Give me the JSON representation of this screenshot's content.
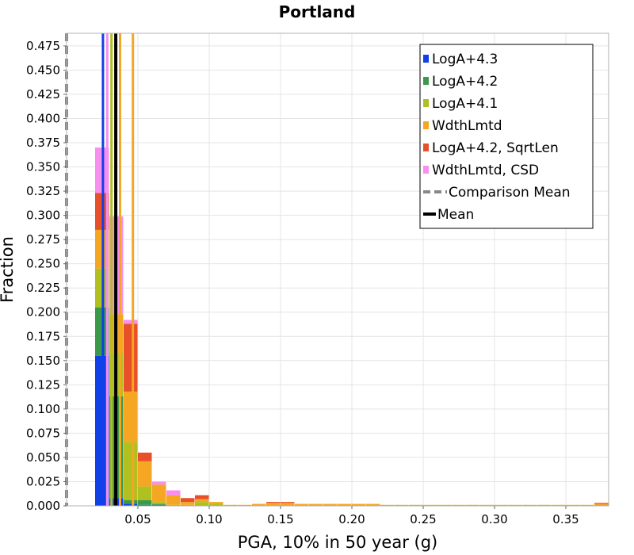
{
  "chart_data": {
    "type": "bar",
    "stacked": true,
    "title": "Portland",
    "xlabel": "PGA, 10% in 50 year (g)",
    "ylabel": "Fraction",
    "xlim": [
      0.0,
      0.38
    ],
    "ylim": [
      0.0,
      0.488
    ],
    "x_ticks": [
      0.05,
      0.1,
      0.15,
      0.2,
      0.25,
      0.3,
      0.35
    ],
    "x_tick_labels": [
      "0.05",
      "0.10",
      "0.15",
      "0.20",
      "0.25",
      "0.30",
      "0.35"
    ],
    "y_ticks": [
      0.0,
      0.025,
      0.05,
      0.075,
      0.1,
      0.125,
      0.15,
      0.175,
      0.2,
      0.225,
      0.25,
      0.275,
      0.3,
      0.325,
      0.35,
      0.375,
      0.4,
      0.425,
      0.45,
      0.475
    ],
    "y_tick_labels": [
      "0.000",
      "0.025",
      "0.050",
      "0.075",
      "0.100",
      "0.125",
      "0.150",
      "0.175",
      "0.200",
      "0.225",
      "0.250",
      "0.275",
      "0.300",
      "0.325",
      "0.350",
      "0.375",
      "0.400",
      "0.425",
      "0.450",
      "0.475"
    ],
    "grid": true,
    "legend_position": "top-right",
    "bin_width": 0.01,
    "bin_starts": [
      0.02,
      0.03,
      0.04,
      0.05,
      0.06,
      0.07,
      0.08,
      0.09,
      0.1,
      0.11,
      0.12,
      0.13,
      0.14,
      0.15,
      0.16,
      0.17,
      0.18,
      0.19,
      0.2,
      0.21,
      0.22,
      0.23,
      0.24,
      0.25,
      0.26,
      0.27,
      0.28,
      0.29,
      0.3,
      0.31,
      0.32,
      0.33,
      0.34,
      0.35,
      0.36,
      0.37
    ],
    "series": [
      {
        "name": "LogA+4.3",
        "color": "#1040e8",
        "values": [
          0.155,
          0.008,
          0.002,
          0.001,
          0.001,
          0,
          0,
          0,
          0,
          0,
          0,
          0,
          0,
          0,
          0,
          0,
          0,
          0,
          0,
          0,
          0,
          0,
          0,
          0,
          0,
          0,
          0,
          0,
          0,
          0,
          0,
          0,
          0,
          0,
          0,
          0
        ]
      },
      {
        "name": "LogA+4.2",
        "color": "#3a9a4a",
        "values": [
          0.05,
          0.105,
          0.004,
          0.005,
          0.001,
          0,
          0,
          0,
          0,
          0,
          0,
          0,
          0,
          0,
          0,
          0,
          0,
          0,
          0,
          0,
          0,
          0,
          0,
          0,
          0,
          0,
          0,
          0,
          0,
          0,
          0,
          0,
          0,
          0,
          0,
          0
        ]
      },
      {
        "name": "LogA+4.1",
        "color": "#b0c020",
        "values": [
          0.04,
          0.045,
          0.06,
          0.014,
          0.002,
          0.001,
          0.001,
          0.004,
          0.002,
          0.0,
          0.0,
          0,
          0,
          0,
          0,
          0,
          0,
          0,
          0,
          0,
          0,
          0,
          0,
          0,
          0,
          0,
          0,
          0,
          0,
          0,
          0,
          0,
          0,
          0,
          0,
          0
        ]
      },
      {
        "name": "WdthLmtd",
        "color": "#f5a623",
        "values": [
          0.04,
          0.04,
          0.052,
          0.026,
          0.018,
          0.01,
          0.003,
          0.003,
          0.002,
          0.001,
          0.001,
          0.002,
          0.003,
          0.003,
          0.002,
          0.002,
          0.002,
          0.002,
          0.002,
          0.002,
          0.001,
          0.001,
          0.001,
          0.001,
          0.001,
          0.001,
          0.001,
          0.001,
          0.001,
          0.001,
          0.001,
          0.001,
          0.001,
          0.001,
          0.001,
          0.002
        ]
      },
      {
        "name": "LogA+4.2, SqrtLen",
        "color": "#e8502a",
        "values": [
          0.038,
          0.0,
          0.07,
          0.009,
          0.0,
          0.0,
          0.004,
          0.004,
          0.0,
          0,
          0,
          0,
          0.001,
          0.001,
          0,
          0,
          0,
          0,
          0,
          0,
          0,
          0,
          0,
          0,
          0,
          0,
          0,
          0,
          0,
          0,
          0,
          0,
          0,
          0,
          0,
          0.001
        ]
      },
      {
        "name": "WdthLmtd, CSD",
        "color": "#f78ef0",
        "values": [
          0.047,
          0.101,
          0.004,
          0.0,
          0.003,
          0.005,
          0.0,
          0.0,
          0,
          0,
          0,
          0,
          0,
          0,
          0,
          0,
          0,
          0,
          0,
          0,
          0,
          0,
          0,
          0,
          0,
          0,
          0,
          0,
          0,
          0,
          0,
          0,
          0,
          0,
          0,
          0
        ]
      }
    ],
    "mean_lines": [
      {
        "series": "LogA+4.3",
        "x": 0.0255,
        "color": "#1040e8"
      },
      {
        "series": "WdthLmtd, CSD",
        "x": 0.0285,
        "color": "#f78ef0"
      },
      {
        "series": "LogA+4.1",
        "x": 0.0315,
        "color": "#b0c020"
      },
      {
        "series": "LogA+4.2, SqrtLen",
        "x": 0.0375,
        "color": "#e8502a"
      },
      {
        "series": "WdthLmtd",
        "x": 0.0375,
        "color": "#f5a623"
      },
      {
        "series": "WdthLmtd",
        "x": 0.0465,
        "color": "#f5a623"
      }
    ],
    "comparison_mean": {
      "x": 0.0,
      "color": "#888888"
    },
    "mean": {
      "x": 0.0345,
      "color": "#000000"
    },
    "legend": [
      {
        "label": "LogA+4.3",
        "kind": "box",
        "color": "#1040e8"
      },
      {
        "label": "LogA+4.2",
        "kind": "box",
        "color": "#3a9a4a"
      },
      {
        "label": "LogA+4.1",
        "kind": "box",
        "color": "#b0c020"
      },
      {
        "label": "WdthLmtd",
        "kind": "box",
        "color": "#f5a623"
      },
      {
        "label": "LogA+4.2, SqrtLen",
        "kind": "box",
        "color": "#e8502a"
      },
      {
        "label": "WdthLmtd, CSD",
        "kind": "box",
        "color": "#f78ef0"
      },
      {
        "label": "Comparison Mean",
        "kind": "dashed",
        "color": "#888888"
      },
      {
        "label": "Mean",
        "kind": "solid",
        "color": "#000000"
      }
    ]
  }
}
